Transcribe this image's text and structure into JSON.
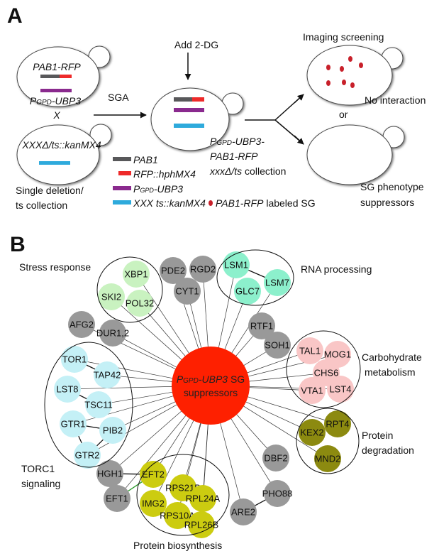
{
  "panel_a": {
    "label": "A",
    "cell1": {
      "line1": "PAB1-RFP",
      "line2_p": "P",
      "line2_sub": "GPD",
      "line2_rest": "-UBP3"
    },
    "cross": "X",
    "cell2": {
      "line1": "XXXΔ/ts::kanMX4"
    },
    "collection": [
      "Single deletion/",
      "ts collection"
    ],
    "sga": "SGA",
    "add": "Add 2-DG",
    "strain": {
      "p": "P",
      "sub": "GPD",
      "l1_rest": "-UBP3-",
      "l2": "PAB1-RFP",
      "l3_it": "xxxΔ/ts",
      "l3_rest": " collection"
    },
    "legend": [
      {
        "label": "PAB1",
        "color": "#58585a"
      },
      {
        "label": "RFP::hphMX4",
        "color": "#ee2a2a"
      },
      {
        "label_p": "P",
        "label_sub": "GPD",
        "label_rest": "-UBP3",
        "color": "#8a2a8e"
      },
      {
        "label": "XXX ts::kanMX4",
        "color": "#2eaadc"
      }
    ],
    "sg_legend": {
      "it": "PAB1-RFP",
      "rest": " labeled SG",
      "color": "#c8202a"
    },
    "imaging": "Imaging screening",
    "no_interaction": "No interaction",
    "or": "or",
    "suppressors": [
      "SG phenotype",
      "suppressors"
    ]
  },
  "panel_b": {
    "label": "B",
    "center": {
      "p": "P",
      "sub": "GPD",
      "it": "-UBP3",
      "rest": " SG",
      "line2": "suppressors",
      "color": "#fe2000"
    },
    "colors": {
      "stress": "#c9f2c0",
      "rna": "#8cf0cc",
      "carb": "#f9c6c6",
      "torc1": "#c4f0f6",
      "deg": "#8c8a10",
      "bio": "#cccc10",
      "other": "#999999"
    },
    "groups": {
      "stress": "Stress response",
      "rna": "RNA processing",
      "carb": [
        "Carbohydrate",
        "metabolism"
      ],
      "torc1": [
        "TORC1",
        "signaling"
      ],
      "deg": [
        "Protein",
        "degradation"
      ],
      "bio": "Protein biosynthesis"
    },
    "nodes": [
      {
        "id": "XBP1",
        "group": "stress"
      },
      {
        "id": "SKI2",
        "group": "stress"
      },
      {
        "id": "POL32",
        "group": "stress"
      },
      {
        "id": "PDE2",
        "group": "other"
      },
      {
        "id": "RGD2",
        "group": "other"
      },
      {
        "id": "CYT1",
        "group": "other"
      },
      {
        "id": "LSM1",
        "group": "rna"
      },
      {
        "id": "LSM7",
        "group": "rna"
      },
      {
        "id": "GLC7",
        "group": "rna"
      },
      {
        "id": "AFG2",
        "group": "other"
      },
      {
        "id": "DUR1,2",
        "group": "other"
      },
      {
        "id": "RTF1",
        "group": "other"
      },
      {
        "id": "SOH1",
        "group": "other"
      },
      {
        "id": "TAL1",
        "group": "carb"
      },
      {
        "id": "MOG1",
        "group": "carb"
      },
      {
        "id": "CHS6",
        "group": "carb"
      },
      {
        "id": "VTA1",
        "group": "carb"
      },
      {
        "id": "LST4",
        "group": "carb"
      },
      {
        "id": "TOR1",
        "group": "torc1"
      },
      {
        "id": "TAP42",
        "group": "torc1"
      },
      {
        "id": "LST8",
        "group": "torc1"
      },
      {
        "id": "TSC11",
        "group": "torc1"
      },
      {
        "id": "GTR1",
        "group": "torc1"
      },
      {
        "id": "PIB2",
        "group": "torc1"
      },
      {
        "id": "GTR2",
        "group": "torc1"
      },
      {
        "id": "RPT4",
        "group": "deg"
      },
      {
        "id": "KEX2",
        "group": "deg"
      },
      {
        "id": "MND2",
        "group": "deg"
      },
      {
        "id": "DBF2",
        "group": "other"
      },
      {
        "id": "HGH1",
        "group": "other"
      },
      {
        "id": "EFT1",
        "group": "other"
      },
      {
        "id": "EFT2",
        "group": "bio"
      },
      {
        "id": "RPS21B",
        "group": "bio"
      },
      {
        "id": "RPL24A",
        "group": "bio"
      },
      {
        "id": "IMG2",
        "group": "bio"
      },
      {
        "id": "RPS10A",
        "group": "bio"
      },
      {
        "id": "RPL26B",
        "group": "bio"
      },
      {
        "id": "ARE2",
        "group": "other"
      },
      {
        "id": "PHO88",
        "group": "other"
      }
    ],
    "interactions": [
      [
        "LSM7",
        "LSM1"
      ],
      [
        "TAP42",
        "TOR1"
      ],
      [
        "TSC11",
        "LST8"
      ],
      [
        "PIB2",
        "GTR1"
      ],
      [
        "PIB2",
        "GTR2"
      ],
      [
        "GTR2",
        "GTR1"
      ],
      [
        "HGH1",
        "EFT2"
      ],
      [
        "EFT1",
        "EFT2"
      ],
      [
        "ARE2",
        "PHO88"
      ]
    ]
  }
}
